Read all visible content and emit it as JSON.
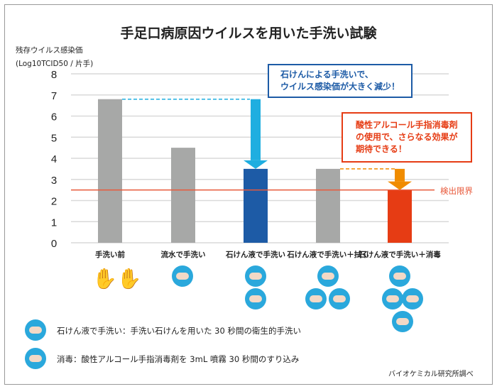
{
  "chart_data": {
    "type": "bar",
    "title": "手足口病原因ウイルスを用いた手洗い試験",
    "ylabel": "残存ウイルス感染価",
    "ylabel_unit": "(Log10TCID50 / 片手)",
    "ylim": [
      0,
      8
    ],
    "yticks": [
      "0",
      "1",
      "2",
      "3",
      "4",
      "5",
      "6",
      "7",
      "8"
    ],
    "grid": true,
    "categories": [
      "手洗い前",
      "流水で手洗い",
      "石けん液で手洗い",
      "石けん液で手洗い＋拭く",
      "石けん液で手洗い＋消毒"
    ],
    "values": [
      6.8,
      4.5,
      3.5,
      3.5,
      2.5
    ],
    "bar_colors": [
      "#a7a8a7",
      "#a7a8a7",
      "#1d5ba6",
      "#a7a8a7",
      "#e63c14"
    ],
    "detection_limit": {
      "value": 2.5,
      "label": "検出限界",
      "color": "#e8593a"
    },
    "annotations": [
      {
        "text_lines": [
          "石けんによる手洗いで、",
          "ウイルス感染価が大きく減少！"
        ],
        "color": "#1d5ba6"
      },
      {
        "text_lines": [
          "酸性アルコール手指消毒剤",
          "の使用で、さらなる効果が",
          "期待できる！"
        ],
        "color": "#e63c14"
      }
    ],
    "arrow_colors": [
      "#1faee0",
      "#f08c00"
    ]
  },
  "legend": [
    {
      "icon": "soap-handwash-icon",
      "text": "石けん液で手洗い：手洗い石けんを用いた 30 秒間の衛生的手洗い"
    },
    {
      "icon": "disinfect-icon",
      "text": "消毒：酸性アルコール手指消毒剤を 3mL 噴霧 30 秒間のすり込み"
    }
  ],
  "source": "バイオケミカル研究所調べ"
}
